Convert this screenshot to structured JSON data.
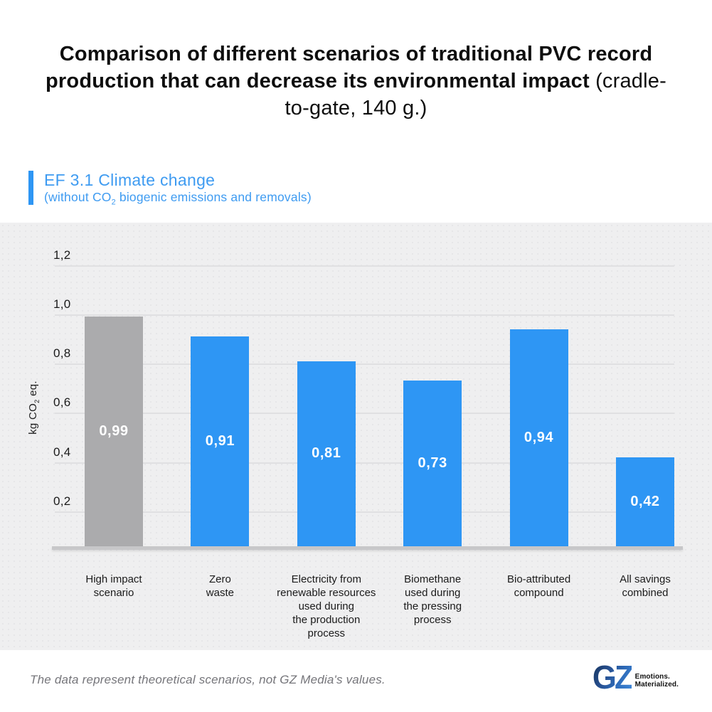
{
  "title": {
    "bold": "Comparison of different scenarios of traditional PVC record production that can decrease its environmental impact",
    "regular": " (cradle-to-gate, 140 g.)"
  },
  "section": {
    "heading": "EF 3.1 Climate change",
    "subheading": {
      "pre": "(without CO",
      "sub": "2",
      "post": " biogenic emissions and removals)"
    }
  },
  "chart_data": {
    "type": "bar",
    "title": "EF 3.1 Climate change (without CO2 biogenic emissions and removals)",
    "ylabel": {
      "pre": "kg CO",
      "sub": "2",
      "post": " eq."
    },
    "ylim": [
      0,
      1.2
    ],
    "grid": true,
    "legend": "none",
    "yticks": [
      {
        "value": 1.2,
        "label": "1,2"
      },
      {
        "value": 1.0,
        "label": "1,0"
      },
      {
        "value": 0.8,
        "label": "0,8"
      },
      {
        "value": 0.6,
        "label": "0,6"
      },
      {
        "value": 0.4,
        "label": "0,4"
      },
      {
        "value": 0.2,
        "label": "0,2"
      }
    ],
    "bars": [
      {
        "category_lines": [
          "High impact",
          "scenario"
        ],
        "value": 0.99,
        "display": "0,99",
        "color": "#ABABAD"
      },
      {
        "category_lines": [
          "Zero",
          "waste"
        ],
        "value": 0.91,
        "display": "0,91",
        "color": "#2E96F4"
      },
      {
        "category_lines": [
          "Electricity from",
          "renewable resources",
          "used during",
          "the production",
          "process"
        ],
        "value": 0.81,
        "display": "0,81",
        "color": "#2E96F4"
      },
      {
        "category_lines": [
          "Biomethane",
          "used during",
          "the pressing",
          "process"
        ],
        "value": 0.73,
        "display": "0,73",
        "color": "#2E96F4"
      },
      {
        "category_lines": [
          "Bio-attributed",
          "compound"
        ],
        "value": 0.94,
        "display": "0,94",
        "color": "#2E96F4"
      },
      {
        "category_lines": [
          "All savings",
          "combined"
        ],
        "value": 0.42,
        "display": "0,42",
        "color": "#2E96F4"
      }
    ]
  },
  "footer": {
    "disclaimer": "The data represent theoretical scenarios, not GZ Media's values.",
    "logo": {
      "text": "GZ",
      "tagline_line1": "Emotions.",
      "tagline_line2": "Materialized."
    }
  },
  "colors": {
    "bar_blue": "#2E96F4",
    "bar_gray": "#ABABAD",
    "heading_blue": "#3E9BF1",
    "accent_blue": "#2E96F4",
    "panel_bg": "#EFEFF0",
    "gridline": "#E0E0E2",
    "baseline": "#C7C7C9",
    "title_text": "#0E0E0E",
    "disclaimer_text": "#75757A",
    "bar_value_text": "#FFFFFF",
    "logo_navy": "#16345E",
    "logo_blue": "#3F87D9"
  }
}
